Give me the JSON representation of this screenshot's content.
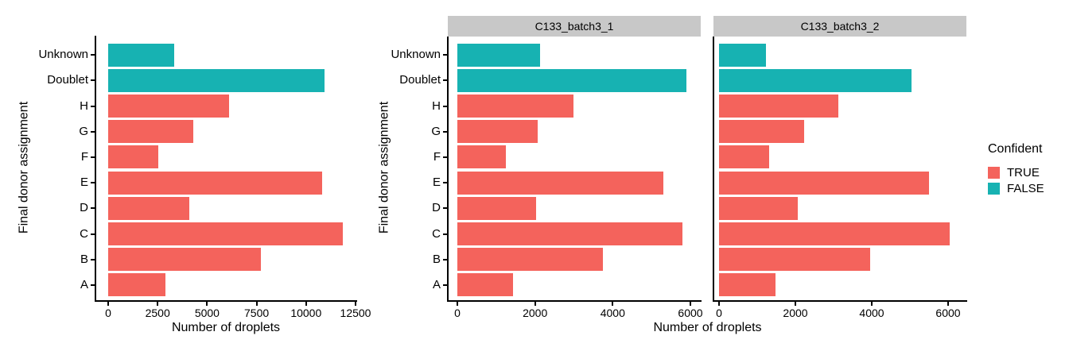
{
  "colors": {
    "confident_true": "#F4635C",
    "confident_false": "#17B2B2",
    "strip_bg": "#C8C8C8",
    "axis": "#000000"
  },
  "legend": {
    "title": "Confident",
    "items": [
      {
        "label": "TRUE",
        "color": "#F4635C"
      },
      {
        "label": "FALSE",
        "color": "#17B2B2"
      }
    ]
  },
  "chart_data": [
    {
      "type": "bar",
      "orientation": "horizontal",
      "title": "",
      "xlabel": "Number of droplets",
      "ylabel": "Final donor assignment",
      "categories": [
        "Unknown",
        "Doublet",
        "H",
        "G",
        "F",
        "E",
        "D",
        "C",
        "B",
        "A"
      ],
      "values": [
        3350,
        10950,
        6100,
        4300,
        2550,
        10800,
        4100,
        11850,
        7700,
        2900
      ],
      "confident": [
        false,
        false,
        true,
        true,
        true,
        true,
        true,
        true,
        true,
        true
      ],
      "xlim": [
        0,
        12500
      ],
      "xticks": [
        0,
        2500,
        5000,
        7500,
        10000,
        12500
      ],
      "grid": false,
      "legend_position": "none"
    },
    {
      "type": "bar",
      "orientation": "horizontal",
      "title": "",
      "xlabel": "Number of droplets",
      "ylabel": "Final donor assignment",
      "categories": [
        "Unknown",
        "Doublet",
        "H",
        "G",
        "F",
        "E",
        "D",
        "C",
        "B",
        "A"
      ],
      "confident": [
        false,
        false,
        true,
        true,
        true,
        true,
        true,
        true,
        true,
        true
      ],
      "facets": [
        {
          "label": "C133_batch3_1",
          "values": [
            2130,
            5900,
            2980,
            2070,
            1240,
            5300,
            2030,
            5800,
            3740,
            1430
          ]
        },
        {
          "label": "C133_batch3_2",
          "values": [
            1220,
            5050,
            3120,
            2230,
            1310,
            5500,
            2070,
            6050,
            3960,
            1470
          ]
        }
      ],
      "xlim": [
        0,
        6000
      ],
      "xticks": [
        0,
        2000,
        4000,
        6000
      ],
      "grid": false,
      "legend_position": "right"
    }
  ]
}
